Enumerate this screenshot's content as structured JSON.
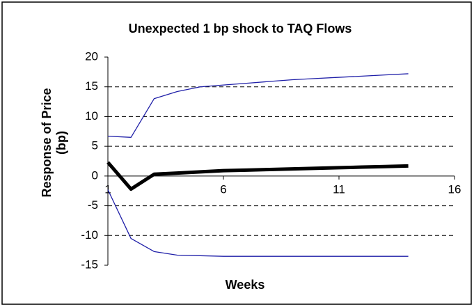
{
  "chart_data": {
    "type": "line",
    "title": "Unexpected 1 bp shock to TAQ Flows",
    "x_label": "Weeks",
    "y_label": "Response of Price (bp)",
    "x": [
      1,
      2,
      3,
      4,
      5,
      6,
      7,
      8,
      9,
      10,
      11,
      12,
      13,
      14
    ],
    "series": [
      {
        "color": "#1f1fa8",
        "width": 1.3,
        "values": [
          6.7,
          6.5,
          13,
          14.2,
          15,
          15.3,
          15.6,
          15.9,
          16.2,
          16.4,
          16.6,
          16.8,
          17,
          17.2
        ]
      },
      {
        "color": "#000000",
        "width": 5,
        "values": [
          2.3,
          -2.2,
          0.3,
          0.5,
          0.7,
          0.9,
          1.0,
          1.1,
          1.2,
          1.3,
          1.4,
          1.5,
          1.6,
          1.7
        ]
      },
      {
        "color": "#1f1fa8",
        "width": 1.3,
        "values": [
          -2.3,
          -10.5,
          -12.7,
          -13.3,
          -13.4,
          -13.5,
          -13.5,
          -13.5,
          -13.5,
          -13.5,
          -13.5,
          -13.5,
          -13.5,
          -13.5
        ]
      }
    ],
    "xlim": [
      1,
      16
    ],
    "xticks": [
      1,
      6,
      11,
      16
    ],
    "ylim": [
      -15,
      20
    ],
    "yticks": [
      20,
      15,
      10,
      5,
      0,
      -5,
      -10,
      -15
    ],
    "grid": true
  }
}
